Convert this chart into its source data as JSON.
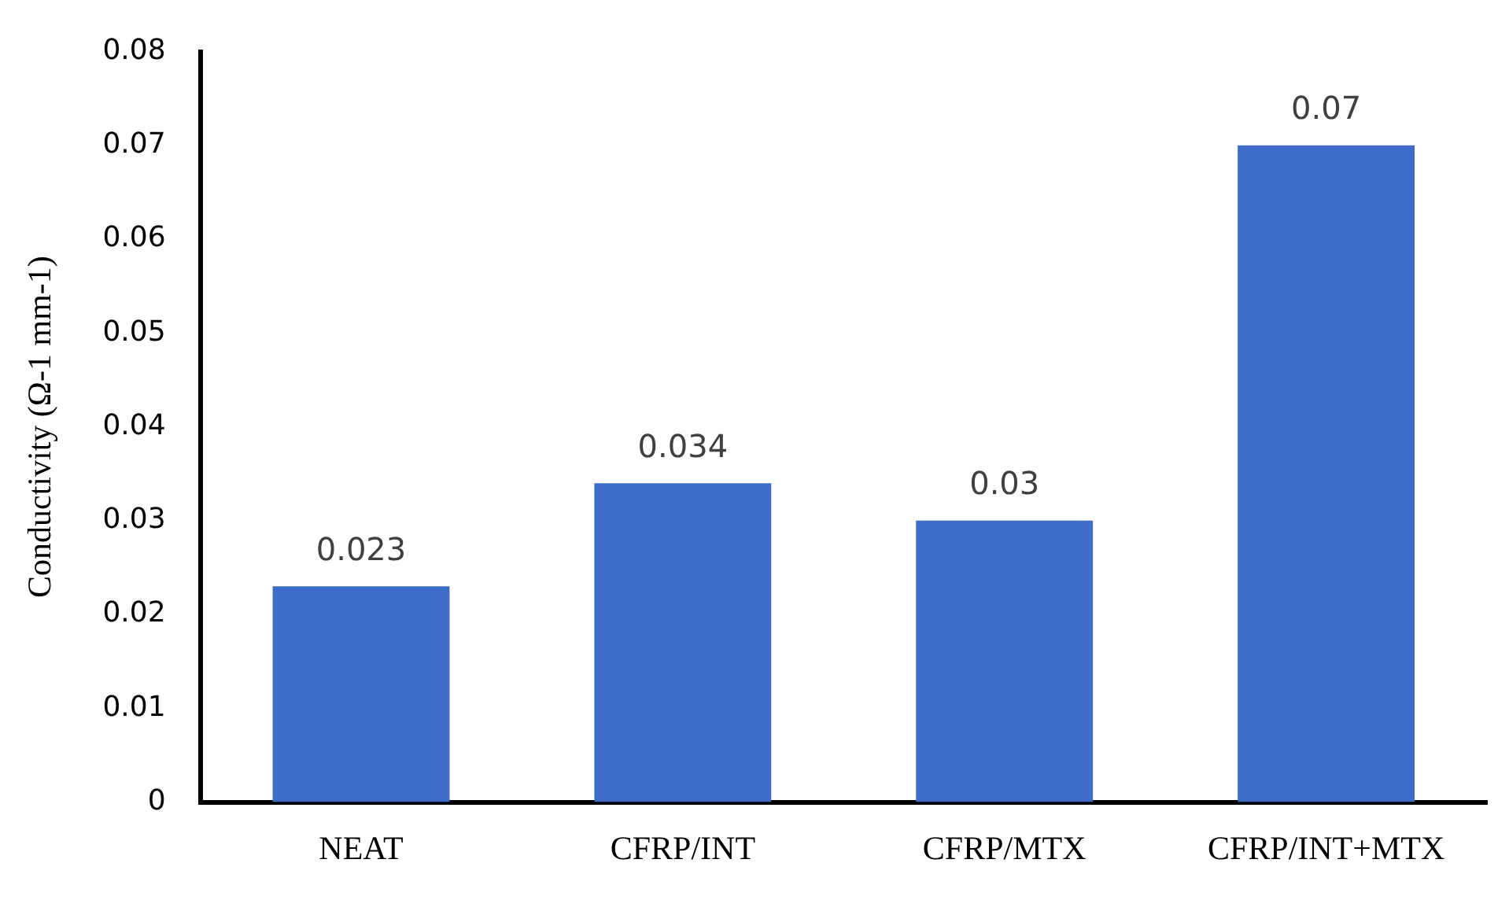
{
  "chart_data": {
    "type": "bar",
    "ylabel": "Conductivity (Ω-1 mm-1)",
    "categories": [
      "NEAT",
      "CFRP/INT",
      "CFRP/MTX",
      "CFRP/INT+MTX"
    ],
    "values": [
      0.023,
      0.034,
      0.03,
      0.07
    ],
    "color": "#3f6cc8",
    "ylim": [
      0,
      0.08
    ],
    "yticks": [
      0,
      0.01,
      0.02,
      0.03,
      0.04,
      0.05,
      0.06,
      0.07,
      0.08
    ],
    "data_labels": true,
    "grid": false,
    "legend": false
  }
}
